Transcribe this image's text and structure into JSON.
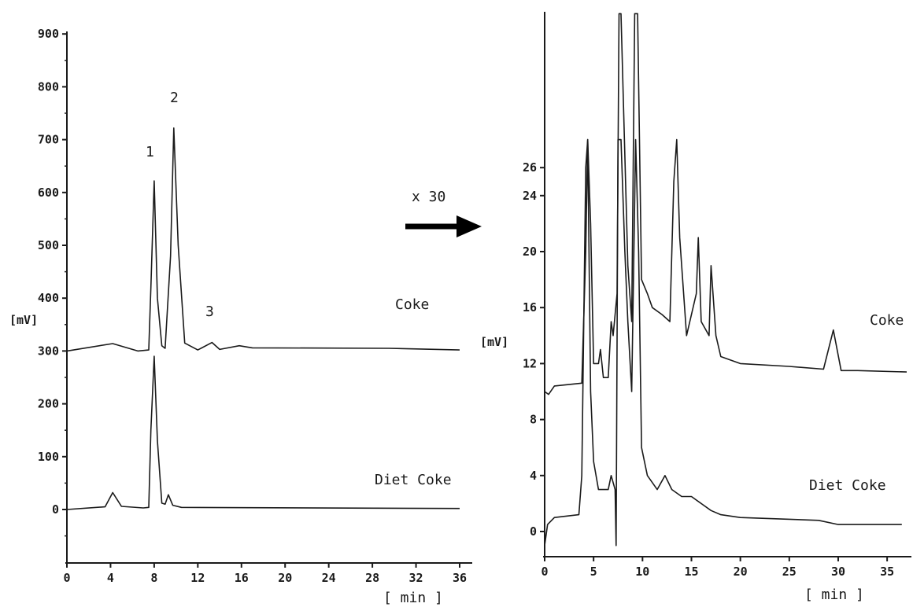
{
  "chart_data": [
    {
      "type": "line",
      "xlabel": "[ min ]",
      "ylabel": "[mV]",
      "xlim": [
        0,
        36
      ],
      "ylim": [
        -100,
        900
      ],
      "xticks": [
        "0",
        "4",
        "8",
        "12",
        "16",
        "20",
        "24",
        "28",
        "32",
        "36"
      ],
      "yticks": [
        "900",
        "800",
        "700",
        "600",
        "500",
        "400",
        "300",
        "200",
        "100",
        "0"
      ],
      "series": [
        {
          "name": "Coke",
          "x": [
            0,
            4.2,
            6.5,
            7.5,
            7.7,
            8,
            8.3,
            8.7,
            9,
            9.5,
            9.8,
            10.2,
            10.8,
            12,
            13.3,
            14,
            15.8,
            17,
            29.5,
            36
          ],
          "y": [
            300,
            314,
            300,
            302,
            420,
            622,
            400,
            310,
            305,
            480,
            722,
            500,
            315,
            302,
            316,
            303,
            310,
            306,
            305,
            302
          ]
        },
        {
          "name": "Diet Coke",
          "x": [
            0,
            3.5,
            4.2,
            5,
            7,
            7.5,
            7.7,
            8,
            8.3,
            8.7,
            9,
            9.3,
            9.7,
            10.5,
            36
          ],
          "y": [
            0,
            5,
            32,
            6,
            3,
            4,
            150,
            290,
            130,
            12,
            10,
            28,
            8,
            4,
            2
          ]
        }
      ],
      "annotations": [
        {
          "text": "1",
          "x": 8.0
        },
        {
          "text": "2",
          "x": 9.8
        },
        {
          "text": "3",
          "x": 13.3
        }
      ]
    },
    {
      "type": "line",
      "xlabel": "[ min ]",
      "ylabel": "[mV]",
      "xlim": [
        0,
        37
      ],
      "ylim": [
        -2,
        37
      ],
      "xticks": [
        "0",
        "5",
        "10",
        "15",
        "20",
        "25",
        "30",
        "35"
      ],
      "yticks": [
        "0",
        "4",
        "8",
        "12",
        "16",
        "20",
        "24",
        "26"
      ],
      "series": [
        {
          "name": "Coke",
          "x": [
            0,
            0.4,
            1,
            3.8,
            4.2,
            4.4,
            4.7,
            5,
            5.5,
            5.7,
            6,
            6.5,
            6.8,
            7,
            7.4,
            7.6,
            7.8,
            8.5,
            8.9,
            9.2,
            9.5,
            9.9,
            10.5,
            11,
            12,
            12.8,
            13.2,
            13.5,
            13.8,
            14.5,
            15.5,
            15.7,
            16,
            16.8,
            17,
            17.5,
            18,
            20,
            25,
            28.5,
            29.5,
            30.3,
            32,
            37
          ],
          "y": [
            10,
            9.8,
            10.4,
            10.6,
            20,
            28,
            22,
            12,
            12,
            13,
            11,
            11,
            15,
            14,
            17,
            37,
            37,
            19,
            15,
            37,
            37,
            18,
            17,
            16,
            15.5,
            15,
            25,
            28,
            21,
            14,
            17,
            21,
            15,
            14,
            19,
            14,
            12.5,
            12,
            11.8,
            11.6,
            14.4,
            11.5,
            11.5,
            11.4
          ]
        },
        {
          "name": "Diet Coke",
          "x": [
            0,
            0.3,
            1,
            3.5,
            3.8,
            4.2,
            4.4,
            4.7,
            5,
            5.5,
            6,
            6.5,
            6.8,
            7,
            7.2,
            7.3,
            7.5,
            7.8,
            8.2,
            8.5,
            8.9,
            9.3,
            9.6,
            9.9,
            10.5,
            11.5,
            12.3,
            13,
            14,
            15,
            16,
            17,
            18,
            20,
            28,
            30,
            36.5
          ],
          "y": [
            -1,
            0.5,
            1,
            1.2,
            4,
            26,
            28,
            10,
            5,
            3,
            3,
            3,
            4,
            3.5,
            3,
            -1,
            28,
            28,
            20,
            15,
            10,
            28,
            20,
            6,
            4,
            3,
            4,
            3,
            2.5,
            2.5,
            2,
            1.5,
            1.2,
            1,
            0.8,
            0.5,
            0.5
          ]
        }
      ]
    }
  ],
  "ui": {
    "zoom_label": "x 30"
  }
}
